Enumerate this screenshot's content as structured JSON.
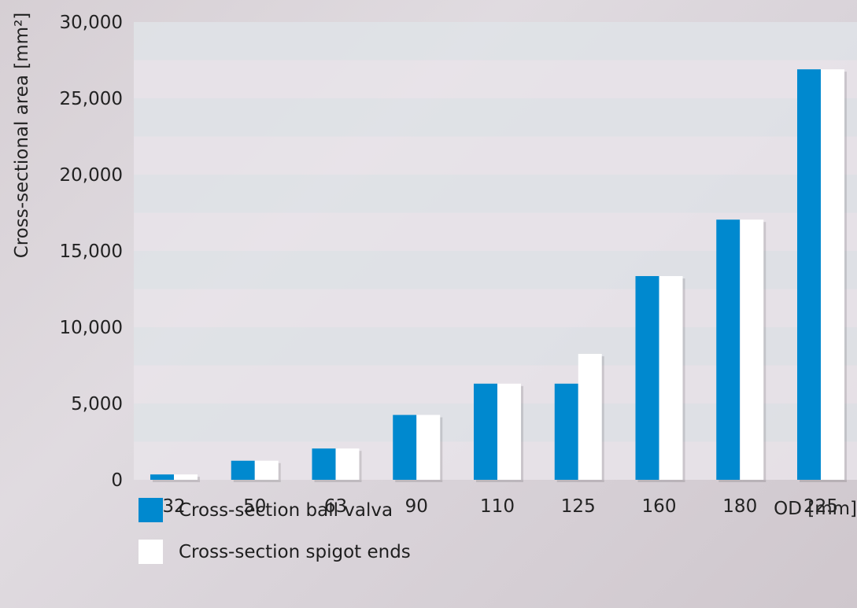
{
  "chart_data": {
    "type": "bar",
    "categories": [
      "32",
      "50",
      "63",
      "90",
      "110",
      "125",
      "160",
      "180",
      "225"
    ],
    "series": [
      {
        "name": "Cross-section ball valva",
        "values": [
          350,
          1250,
          2050,
          4250,
          6300,
          6300,
          13350,
          17050,
          26900
        ],
        "color": "#0089cf"
      },
      {
        "name": "Cross-section spigot ends",
        "values": [
          350,
          1250,
          2050,
          4250,
          6300,
          8250,
          13350,
          17050,
          26900
        ],
        "color": "#ffffff"
      }
    ],
    "y_ticks": [
      "0",
      "5,000",
      "10,000",
      "15,000",
      "20,000",
      "25,000",
      "30,000"
    ],
    "ylim": [
      0,
      30000
    ],
    "ylabel": "Cross-sectional area [mm²]",
    "xlabel": "OD [mm]",
    "grid": "alternating horizontal bands",
    "legend": "bottom-left"
  }
}
